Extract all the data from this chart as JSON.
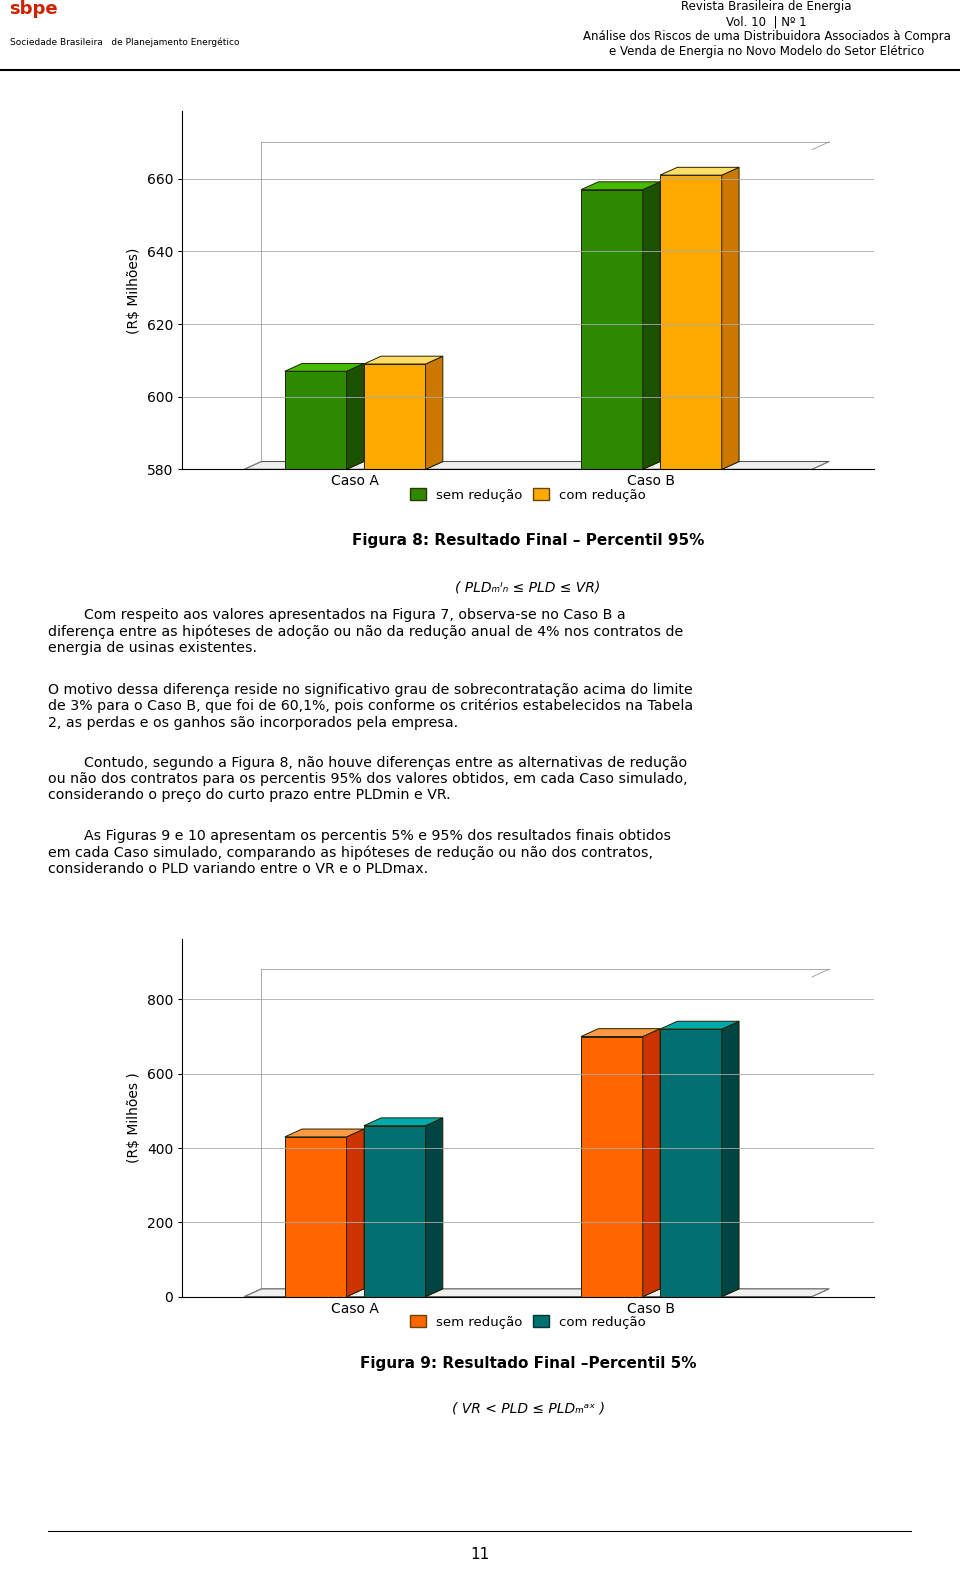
{
  "chart1": {
    "ylabel": "(R$ Milhões)",
    "categories": [
      "Caso A",
      "Caso B"
    ],
    "sem_reducao": [
      607,
      657
    ],
    "com_reducao": [
      609,
      661
    ],
    "ylim": [
      580,
      668
    ],
    "yticks": [
      580,
      600,
      620,
      640,
      660
    ],
    "color_sem_front": "#2d8a00",
    "color_sem_top": "#44bb00",
    "color_sem_side": "#1a5200",
    "color_com_front": "#ffaa00",
    "color_com_top": "#ffdd66",
    "color_com_side": "#cc7700",
    "fig_caption": "Figura 8: Resultado Final – Percentil 95%",
    "fig_subcaption": "( PLD",
    "fig_sub_sub": "min",
    "fig_sub_rest": " ≤ PLD ≤ VR)",
    "legend_sem_color": "#2d8a00",
    "legend_com_color": "#ffaa00"
  },
  "chart2": {
    "ylabel": "(R$ Milhões )",
    "categories": [
      "Caso A",
      "Caso B"
    ],
    "sem_reducao": [
      430,
      700
    ],
    "com_reducao": [
      460,
      720
    ],
    "ylim": [
      0,
      860
    ],
    "yticks": [
      0,
      200,
      400,
      600,
      800
    ],
    "color_sem_front": "#ff6600",
    "color_sem_top": "#ff9944",
    "color_sem_side": "#cc3300",
    "color_com_front": "#007070",
    "color_com_top": "#00aaaa",
    "color_com_side": "#004444",
    "fig_caption": "Figura 9: Resultado Final –Percentil 5%",
    "fig_subcaption": "( VR < PLD ≤ PLD",
    "fig_sub_sub": "max",
    "fig_sub_rest": " )",
    "legend_sem_color": "#ff6600",
    "legend_com_color": "#007070"
  },
  "legend_sem": "sem redução",
  "legend_com": "com redução",
  "para1": "Com respeito aos valores apresentados na Figura 7, observa-se no Caso B a diferença entre as hipóteses de adoção ou não da redução anual de 4% nos contratos de energia de usinas existentes.",
  "para2": "O motivo dessa diferença reside no significativo grau de sobrecontratação acima do limite de 3% para o Caso B, que foi de 60,1%, pois conforme os critérios estabelecidos na Tabela 2, as perdas e os ganhos são incorporados pela empresa.",
  "para3": "Contudo, segundo a Figura 8, não houve diferenças entre as alternativas de redução ou não dos contratos para os percentis 95% dos valores obtidos, em cada Caso simulado, considerando o preço do curto prazo entre PLDmin e VR.",
  "para4": "As Figuras 9 e 10 apresentam os percentis 5% e 95% dos resultados finais obtidos em cada Caso simulado, comparando as hipóteses de redução ou não dos contratos, considerando o PLD variando entre o VR e o PLDmax.",
  "header_line1": "Revista Brasileira de Energia",
  "header_line2": "Vol. 10  | Nº 1",
  "header_line3": "Análise dos Riscos de uma Distribuidora Associados à Compra",
  "header_line4": "e Venda de Energia no Novo Modelo do Setor Elétrico",
  "page_number": "11",
  "bg_color": "#ffffff",
  "grid_color": "#aaaaaa"
}
